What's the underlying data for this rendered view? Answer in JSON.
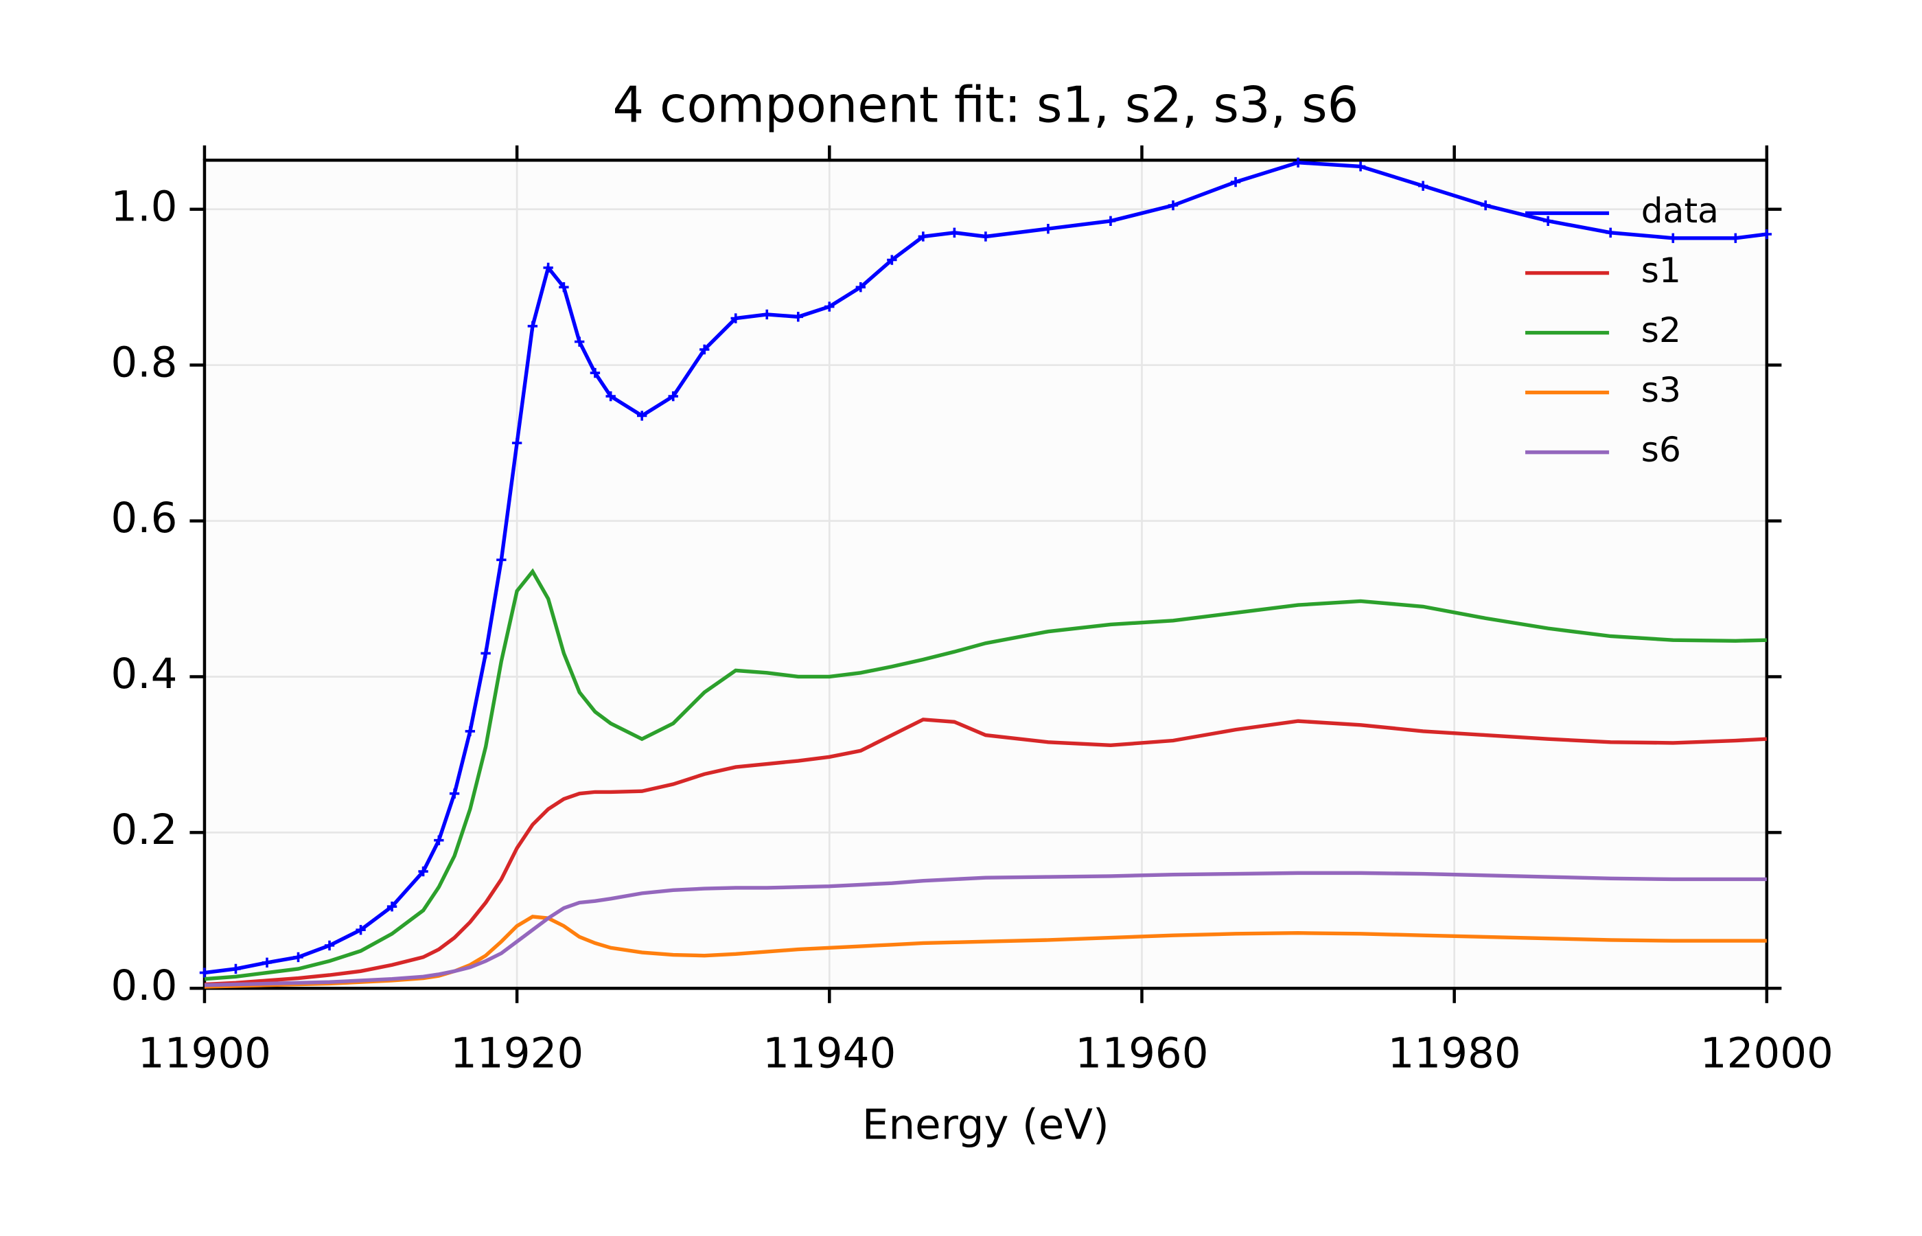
{
  "chart_data": {
    "type": "line",
    "title": "4 component fit:  s1, s2, s3, s6",
    "xlabel": "Energy (eV)",
    "x": [
      11900,
      11902,
      11904,
      11906,
      11908,
      11910,
      11912,
      11914,
      11915,
      11916,
      11917,
      11918,
      11919,
      11920,
      11921,
      11922,
      11923,
      11924,
      11925,
      11926,
      11928,
      11930,
      11932,
      11934,
      11936,
      11938,
      11940,
      11942,
      11944,
      11946,
      11948,
      11950,
      11954,
      11958,
      11962,
      11966,
      11970,
      11974,
      11978,
      11982,
      11986,
      11990,
      11994,
      11998,
      12000
    ],
    "series": [
      {
        "name": "data",
        "color": "#0000ff",
        "marker": "+",
        "values": [
          0.02,
          0.025,
          0.033,
          0.04,
          0.055,
          0.075,
          0.105,
          0.15,
          0.19,
          0.25,
          0.33,
          0.43,
          0.55,
          0.7,
          0.85,
          0.925,
          0.9,
          0.83,
          0.79,
          0.76,
          0.735,
          0.76,
          0.82,
          0.86,
          0.865,
          0.862,
          0.875,
          0.9,
          0.935,
          0.965,
          0.97,
          0.965,
          0.975,
          0.985,
          1.005,
          1.035,
          1.06,
          1.055,
          1.03,
          1.005,
          0.985,
          0.97,
          0.963,
          0.963,
          0.968
        ]
      },
      {
        "name": "s1",
        "color": "#d62728",
        "values": [
          0.005,
          0.007,
          0.01,
          0.013,
          0.017,
          0.022,
          0.03,
          0.04,
          0.05,
          0.065,
          0.085,
          0.11,
          0.14,
          0.18,
          0.21,
          0.23,
          0.243,
          0.25,
          0.252,
          0.252,
          0.253,
          0.262,
          0.275,
          0.284,
          0.288,
          0.292,
          0.297,
          0.305,
          0.325,
          0.345,
          0.342,
          0.325,
          0.316,
          0.312,
          0.318,
          0.332,
          0.343,
          0.338,
          0.33,
          0.325,
          0.32,
          0.316,
          0.315,
          0.318,
          0.32
        ]
      },
      {
        "name": "s2",
        "color": "#2ca02c",
        "values": [
          0.012,
          0.015,
          0.02,
          0.025,
          0.035,
          0.048,
          0.07,
          0.1,
          0.13,
          0.17,
          0.23,
          0.31,
          0.42,
          0.51,
          0.535,
          0.5,
          0.43,
          0.38,
          0.355,
          0.34,
          0.32,
          0.34,
          0.38,
          0.408,
          0.405,
          0.4,
          0.4,
          0.405,
          0.413,
          0.422,
          0.432,
          0.443,
          0.458,
          0.467,
          0.472,
          0.482,
          0.492,
          0.497,
          0.49,
          0.475,
          0.462,
          0.452,
          0.447,
          0.446,
          0.447
        ]
      },
      {
        "name": "s3",
        "color": "#ff7f0e",
        "values": [
          0.002,
          0.003,
          0.004,
          0.005,
          0.006,
          0.008,
          0.01,
          0.013,
          0.016,
          0.022,
          0.03,
          0.042,
          0.06,
          0.08,
          0.092,
          0.09,
          0.08,
          0.066,
          0.058,
          0.052,
          0.046,
          0.043,
          0.042,
          0.044,
          0.047,
          0.05,
          0.052,
          0.054,
          0.056,
          0.058,
          0.059,
          0.06,
          0.062,
          0.065,
          0.068,
          0.07,
          0.071,
          0.07,
          0.068,
          0.066,
          0.064,
          0.062,
          0.061,
          0.061,
          0.061
        ]
      },
      {
        "name": "s6",
        "color": "#9467bd",
        "values": [
          0.004,
          0.005,
          0.006,
          0.007,
          0.008,
          0.01,
          0.012,
          0.015,
          0.018,
          0.022,
          0.027,
          0.035,
          0.045,
          0.06,
          0.075,
          0.09,
          0.103,
          0.11,
          0.112,
          0.115,
          0.122,
          0.126,
          0.128,
          0.129,
          0.129,
          0.13,
          0.131,
          0.133,
          0.135,
          0.138,
          0.14,
          0.142,
          0.143,
          0.144,
          0.146,
          0.147,
          0.148,
          0.148,
          0.147,
          0.145,
          0.143,
          0.141,
          0.14,
          0.14,
          0.14
        ]
      }
    ],
    "xlim": [
      11900,
      12000
    ],
    "xticks": [
      11900,
      11920,
      11940,
      11960,
      11980,
      12000
    ],
    "ylim": [
      0,
      1.063
    ],
    "yticks": [
      {
        "value": 0,
        "label": "0.0"
      },
      0.2,
      0.4,
      0.6,
      0.8,
      {
        "value": 1,
        "label": "1.0"
      }
    ],
    "grid": true,
    "legend": "upper right"
  }
}
